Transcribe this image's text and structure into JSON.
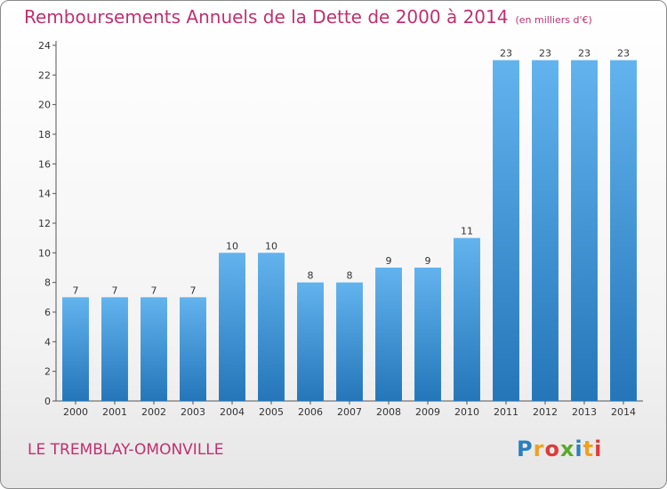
{
  "chart_data": {
    "type": "bar",
    "title": "Remboursements Annuels de la Dette de 2000 à 2014",
    "subtitle": "(en milliers d'€)",
    "categories": [
      "2000",
      "2001",
      "2002",
      "2003",
      "2004",
      "2005",
      "2006",
      "2007",
      "2008",
      "2009",
      "2010",
      "2011",
      "2012",
      "2013",
      "2014"
    ],
    "values": [
      7,
      7,
      7,
      7,
      10,
      10,
      8,
      8,
      9,
      9,
      11,
      23,
      23,
      23,
      23
    ],
    "ylim": [
      0,
      24
    ],
    "yticks": [
      0,
      2,
      4,
      6,
      8,
      10,
      12,
      14,
      16,
      18,
      20,
      22,
      24
    ],
    "xlabel": "",
    "ylabel": "",
    "grid": false
  },
  "footer": {
    "town": "LE TREMBLAY-OMONVILLE",
    "logo": "Proxiti",
    "logo_letters": [
      {
        "ch": "P",
        "color": "#2a7fc1"
      },
      {
        "ch": "r",
        "color": "#f0a020"
      },
      {
        "ch": "o",
        "color": "#e03a3a"
      },
      {
        "ch": "x",
        "color": "#5aaa2a"
      },
      {
        "ch": "i",
        "color": "#2a7fc1"
      },
      {
        "ch": "t",
        "color": "#f0a020"
      },
      {
        "ch": "i",
        "color": "#e03a3a"
      }
    ]
  },
  "colors": {
    "title": "#c0306f",
    "bar_top": "#62b3ee",
    "bar_bottom": "#2476b9"
  }
}
